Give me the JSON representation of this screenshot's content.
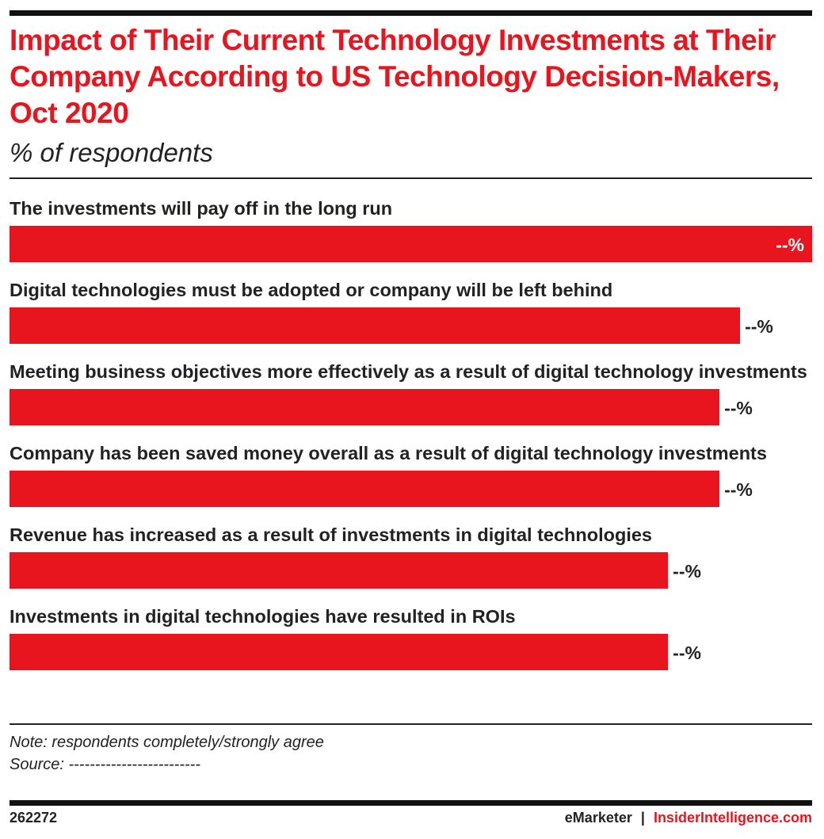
{
  "chart_data": {
    "type": "bar",
    "title": "Impact of Their Current Technology Investments at Their Company According to US Technology Decision-Makers, Oct 2020",
    "subtitle": "% of respondents",
    "categories": [
      "The investments will pay off in the long run",
      "Digital technologies must be adopted or company will be left behind",
      "Meeting business objectives more effectively as a result of digital technology investments",
      "Company has been saved money overall as a result of digital technology investments",
      "Revenue has increased as a result of investments in digital technologies",
      "Investments in digital technologies have resulted in ROIs"
    ],
    "values": [
      78,
      71,
      69,
      69,
      64,
      64
    ],
    "value_labels": [
      "--%",
      "--%",
      "--%",
      "--%",
      "--%",
      "--%"
    ],
    "color": "#e8141e",
    "note": "Note: respondents completely/strongly agree",
    "source": "Source: -------------------------"
  },
  "footer": {
    "id": "262272",
    "brand": "eMarketer",
    "separator": "|",
    "site": "InsiderIntelligence.com"
  }
}
